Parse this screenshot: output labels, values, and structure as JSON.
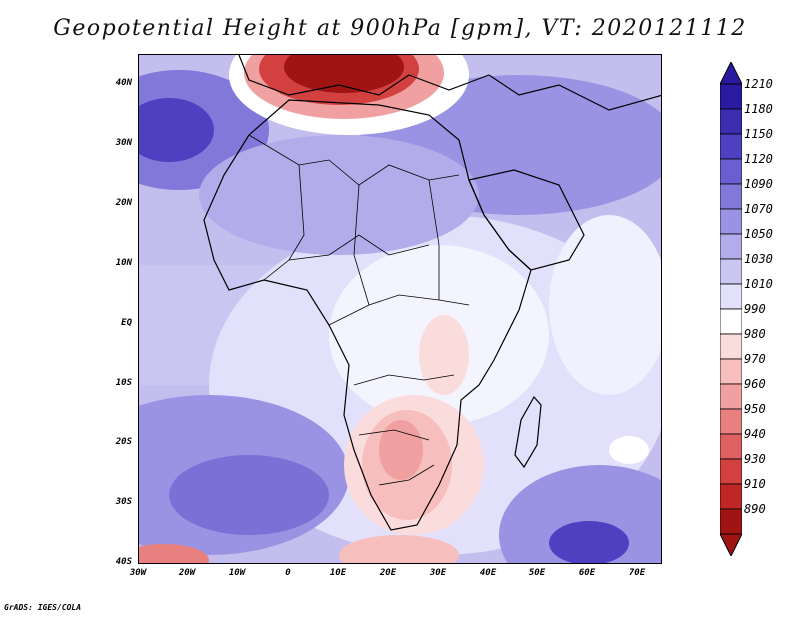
{
  "title": "Geopotential Height at 900hPa [gpm], VT: 2020121112",
  "credit": "GrADS: IGES/COLA",
  "lat_labels": [
    "40N",
    "30N",
    "20N",
    "10N",
    "EQ",
    "10S",
    "20S",
    "30S",
    "40S"
  ],
  "lon_labels": [
    "30W",
    "20W",
    "10W",
    "0",
    "10E",
    "20E",
    "30E",
    "40E",
    "50E",
    "60E",
    "70E"
  ],
  "colorbar": {
    "levels": [
      "1210",
      "1180",
      "1150",
      "1120",
      "1090",
      "1070",
      "1050",
      "1030",
      "1010",
      "990",
      "980",
      "970",
      "960",
      "950",
      "940",
      "930",
      "910",
      "890"
    ],
    "colors": [
      "#2a1aa0",
      "#3b2cb0",
      "#4e40c0",
      "#6a5fd0",
      "#8278da",
      "#9a92e2",
      "#b2acea",
      "#cac6f2",
      "#e2e0fa",
      "#ffffff",
      "#fbdcdc",
      "#f7bebe",
      "#f0a0a0",
      "#e88080",
      "#de6060",
      "#d24040",
      "#c02626",
      "#a01414"
    ]
  }
}
